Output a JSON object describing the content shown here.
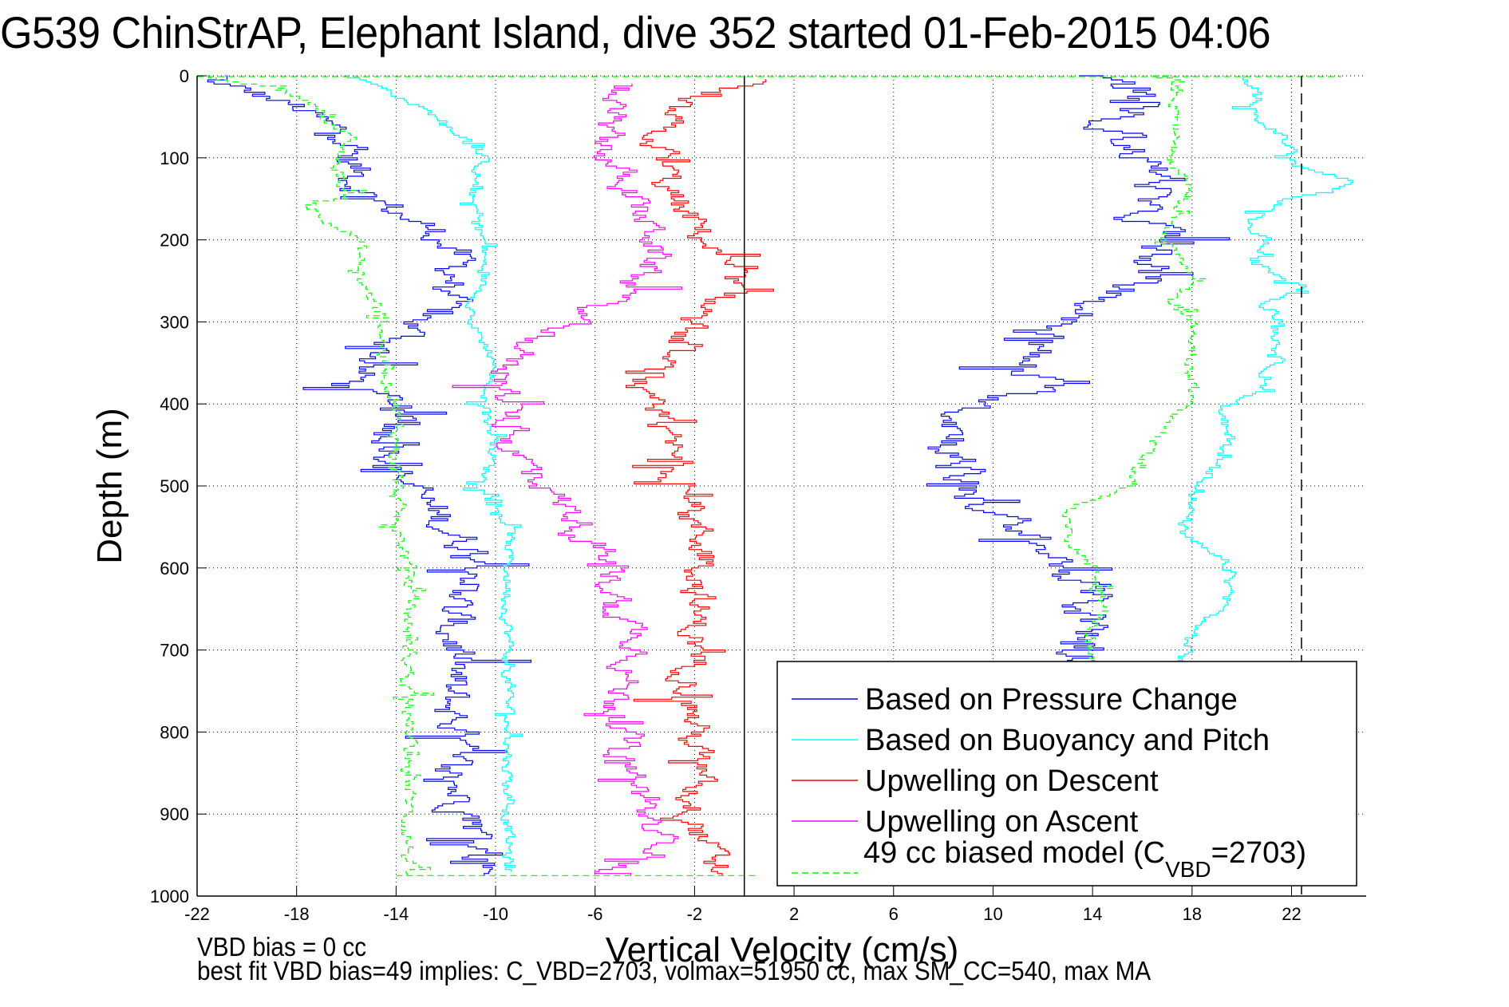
{
  "chart_data": {
    "type": "line",
    "title": "G539 ChinStrAP, Elephant Island, dive 352 started 01-Feb-2015 04:06",
    "xlabel": "Vertical Velocity (cm/s)",
    "ylabel": "Depth (m)",
    "xlim": [
      -22,
      25
    ],
    "ylim": [
      0,
      1000
    ],
    "y_reversed": true,
    "grid": true,
    "x_ticks": [
      -22,
      -18,
      -14,
      -10,
      -6,
      -2,
      2,
      6,
      10,
      14,
      18,
      22
    ],
    "y_ticks": [
      0,
      100,
      200,
      300,
      400,
      500,
      600,
      700,
      800,
      900,
      1000
    ],
    "x_tick_labels": [
      "-22",
      "-18",
      "-14",
      "-10",
      "-6",
      "-2",
      "2",
      "6",
      "10",
      "14",
      "18",
      "22"
    ],
    "y_tick_labels": [
      "0",
      "100",
      "200",
      "300",
      "400",
      "500",
      "600",
      "700",
      "800",
      "900",
      "1000"
    ],
    "reference_lines": [
      {
        "name": "zero-velocity",
        "x": 0,
        "style": "solid",
        "color": "#000000"
      },
      {
        "name": "max-velocity-marker",
        "x": 22.4,
        "style": "dashed",
        "color": "#000000"
      }
    ],
    "legend": {
      "placement": "bottom-right",
      "entries": [
        {
          "label": "Based on Pressure Change",
          "color": "#0000ff",
          "style": "solid"
        },
        {
          "label": "Based on Buoyancy and Pitch",
          "color": "#00ffff",
          "style": "solid"
        },
        {
          "label": "Upwelling on Descent",
          "color": "#ff0000",
          "style": "solid"
        },
        {
          "label": "Upwelling on Ascent",
          "color": "#ff00ff",
          "style": "solid"
        },
        {
          "label_main": "49 cc biased model (C",
          "label_sub": "VBD",
          "label_tail": "=2703)",
          "color": "#00ff00",
          "style": "dashed"
        }
      ]
    },
    "series": [
      {
        "name": "Pressure Change (descent)",
        "color": "#0000ff",
        "style": "solid",
        "noise": 0.9,
        "depth": [
          0,
          10,
          20,
          40,
          60,
          80,
          100,
          150,
          200,
          250,
          300,
          350,
          380,
          400,
          450,
          500,
          550,
          600,
          650,
          700,
          750,
          800,
          850,
          900,
          950,
          975
        ],
        "velocity": [
          -21,
          -21.5,
          -20,
          -18,
          -17,
          -15.5,
          -16,
          -15,
          -12,
          -11.5,
          -13,
          -15,
          -16,
          -14,
          -14,
          -13.5,
          -12,
          -10,
          -12,
          -11.5,
          -12,
          -11.5,
          -12,
          -11,
          -10.5,
          -10
        ]
      },
      {
        "name": "Buoyancy and Pitch (descent)",
        "color": "#00ffff",
        "style": "solid",
        "noise": 0.25,
        "depth": [
          0,
          10,
          40,
          80,
          100,
          150,
          200,
          250,
          300,
          350,
          400,
          450,
          500,
          550,
          600,
          700,
          800,
          900,
          970
        ],
        "velocity": [
          -16,
          -15,
          -13,
          -11,
          -10.5,
          -11,
          -10.5,
          -10.5,
          -11,
          -10,
          -10.5,
          -10,
          -10.5,
          -9.5,
          -9.5,
          -9.5,
          -9.5,
          -9.5,
          -9.5
        ]
      },
      {
        "name": "49 cc biased model (descent)",
        "color": "#00ff00",
        "style": "dashed",
        "noise": 0.3,
        "depth": [
          0,
          15,
          40,
          80,
          100,
          150,
          160,
          200,
          250,
          300,
          350,
          400,
          450,
          500,
          550,
          600,
          700,
          800,
          900,
          975
        ],
        "velocity": [
          -22,
          -19,
          -17,
          -16,
          -16.5,
          -16,
          -17.5,
          -15.5,
          -15.5,
          -14.5,
          -14.5,
          -14,
          -14,
          -14,
          -14,
          -13.5,
          -13.5,
          -13.5,
          -13.5,
          -13.5
        ]
      },
      {
        "name": "Upwelling on Descent",
        "color": "#ff0000",
        "style": "solid",
        "noise": 0.7,
        "depth": [
          5,
          30,
          80,
          150,
          200,
          230,
          260,
          300,
          350,
          390,
          420,
          460,
          500,
          550,
          580,
          600,
          650,
          700,
          750,
          800,
          850,
          900,
          950,
          975
        ],
        "velocity": [
          1,
          -3,
          -3.5,
          -3,
          -1.5,
          -1,
          -0.5,
          -2,
          -3.5,
          -4.5,
          -3.5,
          -3,
          -2.5,
          -2,
          -1.5,
          -1.5,
          -2,
          -2,
          -2,
          -2,
          -2,
          -2,
          -1.5,
          -1
        ]
      },
      {
        "name": "Upwelling on Ascent",
        "color": "#ff00ff",
        "style": "solid",
        "noise": 0.7,
        "depth": [
          10,
          50,
          100,
          150,
          200,
          250,
          300,
          350,
          400,
          450,
          500,
          550,
          600,
          650,
          700,
          750,
          800,
          850,
          900,
          950,
          975
        ],
        "velocity": [
          -5,
          -5.5,
          -5.5,
          -4.5,
          -3.5,
          -4,
          -7,
          -9.5,
          -9.5,
          -9.5,
          -8,
          -6.5,
          -5.5,
          -5,
          -4,
          -5,
          -5,
          -4.5,
          -4,
          -3,
          -6
        ]
      },
      {
        "name": "Pressure Change (ascent)",
        "color": "#0000ff",
        "style": "solid",
        "noise": 1.0,
        "depth": [
          0,
          20,
          60,
          100,
          130,
          160,
          200,
          250,
          300,
          350,
          380,
          410,
          450,
          480,
          520,
          560,
          600,
          640,
          680,
          720
        ],
        "velocity": [
          14,
          15.5,
          15,
          16,
          17,
          15.5,
          17,
          16,
          13,
          11,
          12,
          9,
          8.5,
          8.5,
          9.5,
          11,
          13,
          14,
          13.5,
          14
        ]
      },
      {
        "name": "49 cc biased model (ascent)",
        "color": "#00ff00",
        "style": "dashed",
        "noise": 0.25,
        "depth": [
          0,
          50,
          100,
          130,
          160,
          200,
          250,
          275,
          300,
          340,
          400,
          420,
          450,
          500,
          530,
          560,
          600,
          640,
          680,
          720
        ],
        "velocity": [
          17,
          17.5,
          17,
          18,
          17.5,
          17,
          18,
          17,
          18,
          18,
          18,
          17,
          16.5,
          15.5,
          13,
          13,
          14,
          14.5,
          14,
          14
        ]
      },
      {
        "name": "Buoyancy and Pitch (ascent)",
        "color": "#00ffff",
        "style": "solid",
        "noise": 0.3,
        "depth": [
          0,
          30,
          60,
          90,
          110,
          130,
          150,
          180,
          200,
          230,
          260,
          280,
          300,
          340,
          380,
          410,
          450,
          500,
          520,
          560,
          600,
          640,
          680,
          720
        ],
        "velocity": [
          20,
          20.5,
          21,
          22,
          22,
          24.5,
          22,
          20,
          21,
          20.5,
          22.5,
          21,
          21.5,
          21.5,
          21,
          19,
          19.5,
          18.5,
          18,
          17.5,
          19.5,
          19.5,
          18,
          17.5
        ]
      }
    ]
  },
  "footer": {
    "line1": "VBD bias = 0 cc",
    "line2": "best fit VBD bias=49 implies: C_VBD=2703, volmax=51950 cc, max SM_CC=540, max MA"
  }
}
